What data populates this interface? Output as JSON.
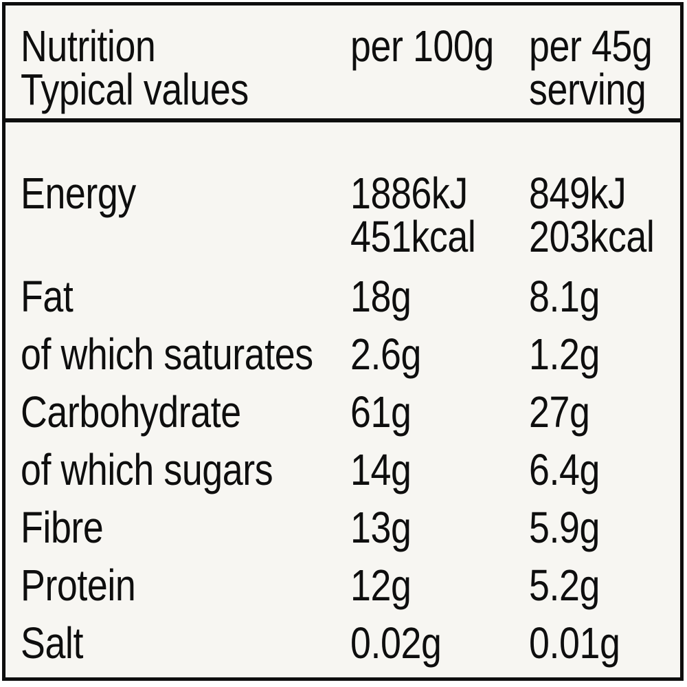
{
  "label": {
    "header": {
      "title_lines": [
        "Nutrition",
        "Typical values"
      ],
      "per100_header": "per 100g",
      "per45_header_lines": [
        "per 45g",
        "serving"
      ]
    },
    "rows": [
      {
        "name": "Energy",
        "per100": [
          "1886kJ",
          "451kcal"
        ],
        "per45": [
          "849kJ",
          "203kcal"
        ]
      },
      {
        "name": "Fat",
        "per100": [
          "18g"
        ],
        "per45": [
          "8.1g"
        ]
      },
      {
        "name": "of which saturates",
        "per100": [
          "2.6g"
        ],
        "per45": [
          "1.2g"
        ]
      },
      {
        "name": "Carbohydrate",
        "per100": [
          "61g"
        ],
        "per45": [
          "27g"
        ]
      },
      {
        "name": "of which sugars",
        "per100": [
          "14g"
        ],
        "per45": [
          "6.4g"
        ]
      },
      {
        "name": "Fibre",
        "per100": [
          "13g"
        ],
        "per45": [
          "5.9g"
        ]
      },
      {
        "name": "Protein",
        "per100": [
          "12g"
        ],
        "per45": [
          "5.2g"
        ]
      },
      {
        "name": "Salt",
        "per100": [
          "0.02g"
        ],
        "per45": [
          "0.01g"
        ]
      }
    ],
    "colors": {
      "background": "#f7f6f2",
      "ink": "#0e0e0e",
      "page_background": "#ffffff"
    }
  }
}
